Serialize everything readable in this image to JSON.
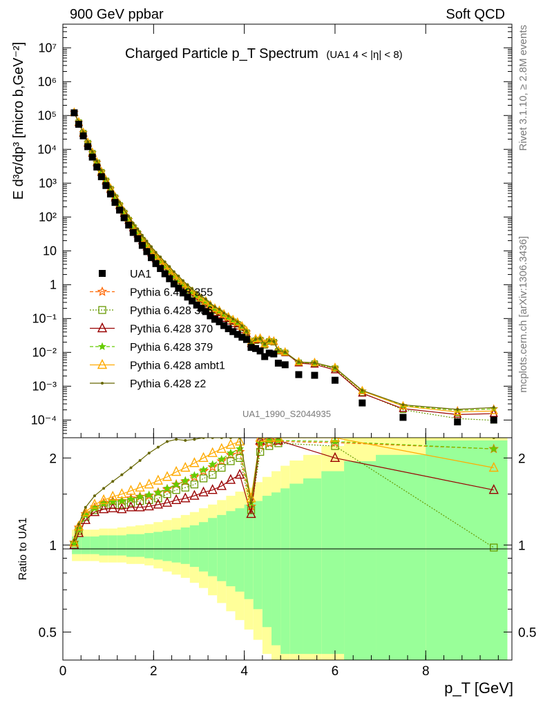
{
  "header": {
    "left": "900 GeV ppbar",
    "right": "Soft QCD"
  },
  "side": {
    "rivet": "Rivet 3.1.10, ≥ 2.8M events",
    "mcplots": "mcplots.cern.ch [arXiv:1306.3436]"
  },
  "analysis_id": "UA1_1990_S2044935",
  "chart_data": [
    {
      "type": "scatter",
      "title": "Charged Particle p_T Spectrum",
      "subtitle": "(UA1   4 < |η| < 8)",
      "xlabel": "p_T [GeV]",
      "ylabel": "E d³σ/dp³ [micro b,GeV⁻²]",
      "xlim": [
        0,
        9.9
      ],
      "ylim": [
        3e-05,
        50000000
      ],
      "y_scale": "log",
      "x_ticks": [
        "0",
        "2",
        "4",
        "6",
        "8"
      ],
      "y_ticks": [
        "10⁻⁴",
        "10⁻³",
        "10⁻²",
        "10⁻¹",
        "1",
        "10",
        "10²",
        "10³",
        "10⁴",
        "10⁵",
        "10⁶",
        "10⁷"
      ],
      "legend_position": "left",
      "data": {
        "name": "UA1",
        "x": [
          0.25,
          0.35,
          0.45,
          0.55,
          0.65,
          0.75,
          0.85,
          0.95,
          1.05,
          1.15,
          1.25,
          1.35,
          1.45,
          1.55,
          1.65,
          1.75,
          1.85,
          1.95,
          2.05,
          2.15,
          2.25,
          2.35,
          2.45,
          2.55,
          2.65,
          2.75,
          2.85,
          2.95,
          3.05,
          3.15,
          3.25,
          3.35,
          3.45,
          3.55,
          3.65,
          3.75,
          3.85,
          3.95,
          4.05,
          4.15,
          4.25,
          4.35,
          4.45,
          4.55,
          4.65,
          4.75,
          4.9,
          5.2,
          5.55,
          6.0,
          6.6,
          7.5,
          8.7,
          9.5
        ],
        "y": [
          120000,
          55000,
          25000,
          12000,
          5900,
          3000,
          1550,
          850,
          480,
          270,
          160,
          95,
          58,
          35,
          23,
          14.5,
          9.5,
          6.3,
          4.2,
          3.0,
          2.1,
          1.5,
          1.05,
          0.78,
          0.57,
          0.43,
          0.33,
          0.25,
          0.2,
          0.16,
          0.12,
          0.095,
          0.08,
          0.062,
          0.05,
          0.041,
          0.034,
          0.028,
          0.024,
          0.014,
          0.013,
          0.011,
          0.0075,
          0.0095,
          0.009,
          0.0048,
          0.0043,
          0.0022,
          0.0021,
          0.0015,
          0.00032,
          0.00012,
          8.8e-05,
          0.0001
        ]
      },
      "series": [
        {
          "name": "Pythia 6.428 355",
          "color": "#ff6600",
          "marker": "star-open",
          "line": "dashed",
          "ratio_x": [
            0.25,
            0.35,
            0.5,
            0.7,
            0.9,
            1.1,
            1.3,
            1.5,
            1.7,
            1.9,
            2.1,
            2.3,
            2.5,
            2.7,
            2.9,
            3.1,
            3.3,
            3.5,
            3.7,
            3.9,
            4.15,
            4.35,
            4.55,
            4.75,
            6.0,
            9.5
          ],
          "ratio_y": [
            1.02,
            1.15,
            1.28,
            1.35,
            1.4,
            1.42,
            1.42,
            1.45,
            1.47,
            1.48,
            1.52,
            1.56,
            1.62,
            1.66,
            1.72,
            1.8,
            1.86,
            1.95,
            2.05,
            2.1,
            1.36,
            2.2,
            2.25,
            2.28,
            2.26,
            2.15
          ]
        },
        {
          "name": "Pythia 6.428 356",
          "color": "#669900",
          "marker": "square-open",
          "line": "dotted",
          "ratio_x": [
            0.25,
            0.35,
            0.5,
            0.7,
            0.9,
            1.1,
            1.3,
            1.5,
            1.7,
            1.9,
            2.1,
            2.3,
            2.5,
            2.7,
            2.9,
            3.1,
            3.3,
            3.5,
            3.7,
            3.9,
            4.15,
            4.35,
            4.55,
            4.75,
            6.0,
            9.5
          ],
          "ratio_y": [
            1.0,
            1.12,
            1.25,
            1.32,
            1.37,
            1.38,
            1.38,
            1.4,
            1.42,
            1.43,
            1.45,
            1.5,
            1.55,
            1.58,
            1.62,
            1.7,
            1.75,
            1.85,
            1.95,
            2.0,
            1.32,
            2.1,
            2.2,
            2.25,
            2.2,
            0.98
          ]
        },
        {
          "name": "Pythia 6.428 370",
          "color": "#990000",
          "marker": "triangle-open",
          "line": "solid",
          "ratio_x": [
            0.25,
            0.35,
            0.5,
            0.7,
            0.9,
            1.1,
            1.3,
            1.5,
            1.7,
            1.9,
            2.1,
            2.3,
            2.5,
            2.7,
            2.9,
            3.1,
            3.3,
            3.5,
            3.7,
            3.9,
            4.15,
            4.35,
            4.55,
            4.75,
            6.0,
            9.5
          ],
          "ratio_y": [
            1.0,
            1.1,
            1.22,
            1.3,
            1.33,
            1.34,
            1.33,
            1.35,
            1.35,
            1.36,
            1.38,
            1.4,
            1.43,
            1.45,
            1.48,
            1.52,
            1.55,
            1.6,
            1.68,
            1.75,
            1.28,
            2.3,
            2.35,
            2.3,
            2.0,
            1.55
          ]
        },
        {
          "name": "Pythia 6.428 379",
          "color": "#66cc00",
          "marker": "star",
          "line": "dashed",
          "ratio_x": [
            0.25,
            0.35,
            0.5,
            0.7,
            0.9,
            1.1,
            1.3,
            1.5,
            1.7,
            1.9,
            2.1,
            2.3,
            2.5,
            2.7,
            2.9,
            3.1,
            3.3,
            3.5,
            3.7,
            3.9,
            4.15,
            4.35,
            4.55,
            4.75,
            6.0,
            9.5
          ],
          "ratio_y": [
            1.01,
            1.13,
            1.27,
            1.34,
            1.39,
            1.41,
            1.42,
            1.44,
            1.47,
            1.49,
            1.52,
            1.57,
            1.62,
            1.67,
            1.74,
            1.82,
            1.9,
            1.98,
            2.08,
            2.15,
            1.4,
            2.25,
            2.3,
            2.3,
            2.28,
            2.15
          ]
        },
        {
          "name": "Pythia 6.428 ambt1",
          "color": "#ffaa00",
          "marker": "triangle-open",
          "line": "solid",
          "ratio_x": [
            0.25,
            0.35,
            0.5,
            0.7,
            0.9,
            1.1,
            1.3,
            1.5,
            1.7,
            1.9,
            2.1,
            2.3,
            2.5,
            2.7,
            2.9,
            3.1,
            3.3,
            3.5,
            3.7,
            3.9,
            4.15,
            4.35,
            4.55,
            4.75,
            6.0,
            9.5
          ],
          "ratio_y": [
            1.02,
            1.16,
            1.3,
            1.38,
            1.43,
            1.47,
            1.5,
            1.54,
            1.58,
            1.62,
            1.67,
            1.72,
            1.79,
            1.85,
            1.92,
            2.0,
            2.08,
            2.15,
            2.22,
            2.28,
            1.45,
            2.35,
            2.35,
            2.35,
            2.35,
            1.85
          ]
        },
        {
          "name": "Pythia 6.428 z2",
          "color": "#666600",
          "marker": "dot",
          "line": "solid",
          "ratio_x": [
            0.25,
            0.35,
            0.5,
            0.7,
            0.9,
            1.1,
            1.3,
            1.5,
            1.7,
            1.9,
            2.1,
            2.3,
            2.5,
            2.7,
            2.9,
            3.1,
            3.3,
            3.5,
            3.7,
            3.9,
            4.15,
            4.35,
            4.55,
            4.75,
            6.0,
            9.5
          ],
          "ratio_y": [
            1.04,
            1.18,
            1.35,
            1.48,
            1.57,
            1.66,
            1.75,
            1.85,
            1.96,
            2.08,
            2.18,
            2.28,
            2.32,
            2.3,
            2.32,
            2.35,
            2.35,
            2.35,
            2.35,
            2.35,
            1.4,
            2.35,
            2.35,
            2.35,
            2.35,
            2.35
          ]
        }
      ]
    },
    {
      "type": "line",
      "ylabel": "Ratio to UA1",
      "xlabel": "p_T [GeV]",
      "xlim": [
        0,
        9.9
      ],
      "ylim": [
        0.4,
        2.35
      ],
      "y_ticks": [
        "0.5",
        "1",
        "2"
      ],
      "x_ticks": [
        "0",
        "2",
        "4",
        "6",
        "8"
      ],
      "reference_line": 1,
      "uncertainty_band": {
        "edges": [
          0.2,
          0.4,
          0.6,
          0.8,
          1.0,
          1.2,
          1.4,
          1.6,
          1.8,
          2.0,
          2.2,
          2.4,
          2.6,
          2.8,
          3.0,
          3.2,
          3.4,
          3.6,
          3.8,
          4.0,
          4.2,
          4.4,
          4.6,
          4.8,
          5.0,
          5.3,
          5.7,
          6.2,
          6.9,
          8.0,
          9.8
        ],
        "stat_lo": [
          0.93,
          0.93,
          0.93,
          0.92,
          0.92,
          0.92,
          0.91,
          0.91,
          0.9,
          0.89,
          0.88,
          0.87,
          0.86,
          0.84,
          0.81,
          0.78,
          0.75,
          0.72,
          0.69,
          0.65,
          0.6,
          0.52,
          0.45,
          0.42,
          0.42,
          0.42,
          0.42,
          0.4,
          0.4,
          0.4,
          0.4
        ],
        "stat_hi": [
          1.07,
          1.07,
          1.07,
          1.08,
          1.08,
          1.08,
          1.09,
          1.09,
          1.1,
          1.11,
          1.12,
          1.13,
          1.15,
          1.17,
          1.2,
          1.24,
          1.27,
          1.31,
          1.34,
          1.38,
          1.42,
          1.48,
          1.52,
          1.57,
          1.63,
          1.7,
          1.8,
          1.95,
          2.05,
          2.3,
          2.3
        ],
        "tot_lo": [
          0.88,
          0.88,
          0.88,
          0.87,
          0.87,
          0.87,
          0.86,
          0.86,
          0.85,
          0.83,
          0.81,
          0.79,
          0.77,
          0.74,
          0.71,
          0.67,
          0.63,
          0.59,
          0.55,
          0.51,
          0.47,
          0.42,
          0.4,
          0.4,
          0.4,
          0.4,
          0.4,
          0.4,
          0.4,
          0.4,
          0.4
        ],
        "tot_hi": [
          1.13,
          1.13,
          1.13,
          1.14,
          1.14,
          1.15,
          1.16,
          1.17,
          1.18,
          1.2,
          1.22,
          1.24,
          1.27,
          1.3,
          1.34,
          1.38,
          1.43,
          1.48,
          1.53,
          1.58,
          1.65,
          1.72,
          1.8,
          1.88,
          1.96,
          2.05,
          2.2,
          2.35,
          2.35,
          2.35,
          2.35
        ]
      }
    }
  ]
}
